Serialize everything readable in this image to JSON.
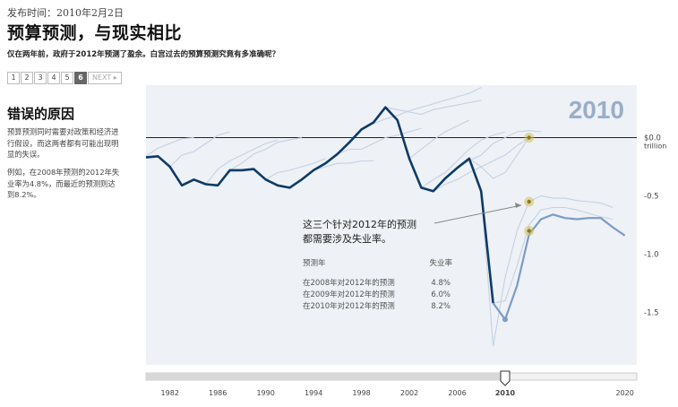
{
  "publish_date": "发布时间：2010年2月2日",
  "headline": "预算预测，与现实相比",
  "subheadline": "仅在两年前，政府于2012年预测了盈余。白宫过去的预算预测究竟有多准确呢？",
  "pager": {
    "pages": [
      "1",
      "2",
      "3",
      "4",
      "5",
      "6"
    ],
    "active_index": 5,
    "next_label": "NEXT ▸"
  },
  "sidebar": {
    "title": "错误的原因",
    "paragraph1": "预算预测同时需要对政策和经济进行假设，而这两者都有可能出现明显的失误。",
    "paragraph2": "例如，在2008年预测的2012年失业率为4.8%，而最近的预测则达到8.2%。"
  },
  "chart_data": {
    "type": "line",
    "year_label": "2010",
    "x_ticks": [
      "1982",
      "1986",
      "1990",
      "1994",
      "1998",
      "2002",
      "2006",
      "2010",
      "2020"
    ],
    "y_ticks": [
      {
        "value": 0.0,
        "label": "$0.0"
      },
      {
        "value": -0.5,
        "label": "-0.5"
      },
      {
        "value": -1.0,
        "label": "-1.0"
      },
      {
        "value": -1.5,
        "label": "-1.5"
      }
    ],
    "y_unit": "trillion",
    "xlim": [
      1980,
      2021
    ],
    "ylim": [
      -1.95,
      0.45
    ],
    "actual": {
      "x": [
        1980,
        1981,
        1982,
        1983,
        1984,
        1985,
        1986,
        1987,
        1988,
        1989,
        1990,
        1991,
        1992,
        1993,
        1994,
        1995,
        1996,
        1997,
        1998,
        1999,
        2000,
        2001,
        2002,
        2003,
        2004,
        2005,
        2006,
        2007,
        2008,
        2009
      ],
      "y": [
        -0.17,
        -0.16,
        -0.25,
        -0.41,
        -0.36,
        -0.4,
        -0.41,
        -0.28,
        -0.28,
        -0.27,
        -0.36,
        -0.41,
        -0.43,
        -0.36,
        -0.28,
        -0.22,
        -0.14,
        -0.04,
        0.07,
        0.13,
        0.26,
        0.15,
        -0.18,
        -0.43,
        -0.46,
        -0.35,
        -0.26,
        -0.18,
        -0.46,
        -1.42
      ]
    },
    "projection_2010": {
      "x": [
        2009,
        2010,
        2011,
        2012,
        2013,
        2014,
        2015,
        2016,
        2017,
        2018,
        2019,
        2020
      ],
      "y": [
        -1.42,
        -1.56,
        -1.27,
        -0.83,
        -0.7,
        -0.66,
        -0.69,
        -0.7,
        -0.69,
        -0.69,
        -0.77,
        -0.84
      ]
    },
    "past_projections": [
      {
        "x": [
          1980,
          1981,
          1982,
          1983,
          1984
        ],
        "y": [
          -0.16,
          -0.09,
          -0.05,
          -0.01,
          0.0
        ]
      },
      {
        "x": [
          1982,
          1983,
          1984,
          1985,
          1986,
          1987
        ],
        "y": [
          -0.25,
          -0.15,
          -0.12,
          -0.05,
          0.02,
          0.05
        ]
      },
      {
        "x": [
          1985,
          1986,
          1987,
          1988,
          1989,
          1990,
          1991
        ],
        "y": [
          -0.4,
          -0.27,
          -0.2,
          -0.15,
          -0.1,
          -0.05,
          -0.02
        ]
      },
      {
        "x": [
          1987,
          1988,
          1989,
          1990,
          1991,
          1992,
          1993
        ],
        "y": [
          -0.28,
          -0.22,
          -0.14,
          -0.1,
          -0.04,
          -0.02,
          0.0
        ]
      },
      {
        "x": [
          1990,
          1991,
          1992,
          1993,
          1994,
          1995
        ],
        "y": [
          -0.36,
          -0.3,
          -0.28,
          -0.25,
          -0.22,
          -0.18
        ]
      },
      {
        "x": [
          1993,
          1994,
          1995,
          1996,
          1997,
          1998,
          1999
        ],
        "y": [
          -0.36,
          -0.28,
          -0.25,
          -0.22,
          -0.22,
          -0.2,
          -0.2
        ]
      },
      {
        "x": [
          1996,
          1997,
          1998,
          1999,
          2000,
          2001,
          2002,
          2003
        ],
        "y": [
          -0.14,
          -0.1,
          -0.1,
          -0.05,
          0.0,
          0.02,
          0.05,
          0.08
        ]
      },
      {
        "x": [
          1998,
          1999,
          2000,
          2001,
          2002,
          2003,
          2004,
          2005,
          2006,
          2007,
          2008
        ],
        "y": [
          0.07,
          0.12,
          0.16,
          0.19,
          0.23,
          0.26,
          0.29,
          0.32,
          0.35,
          0.38,
          0.43
        ]
      },
      {
        "x": [
          2000,
          2001,
          2002,
          2003,
          2004,
          2005,
          2006,
          2007,
          2008
        ],
        "y": [
          0.26,
          0.24,
          0.22,
          0.2,
          0.24,
          0.26,
          0.28,
          0.3,
          0.32
        ]
      },
      {
        "x": [
          2002,
          2003,
          2004,
          2005,
          2006,
          2007
        ],
        "y": [
          -0.18,
          -0.1,
          -0.02,
          0.05,
          0.1,
          0.15
        ]
      },
      {
        "x": [
          2003,
          2004,
          2005,
          2006,
          2007,
          2008,
          2009,
          2010
        ],
        "y": [
          -0.43,
          -0.36,
          -0.3,
          -0.2,
          -0.1,
          -0.02,
          0.02,
          0.05
        ]
      },
      {
        "x": [
          2004,
          2005,
          2006,
          2007,
          2008,
          2009,
          2010,
          2011,
          2012
        ],
        "y": [
          -0.46,
          -0.4,
          -0.36,
          -0.3,
          -0.25,
          -0.2,
          -0.15,
          -0.07,
          0.0
        ]
      },
      {
        "x": [
          2006,
          2007,
          2008,
          2009,
          2010,
          2011,
          2012,
          2013
        ],
        "y": [
          -0.26,
          -0.2,
          -0.15,
          -0.05,
          0.0,
          0.05,
          0.06,
          0.05
        ]
      },
      {
        "x": [
          2007,
          2008,
          2009,
          2010,
          2011,
          2012
        ],
        "y": [
          -0.18,
          -0.25,
          -0.35,
          -0.3,
          -0.15,
          0.0
        ]
      },
      {
        "x": [
          2008,
          2009,
          2010,
          2011,
          2012,
          2013,
          2014,
          2015,
          2016,
          2017,
          2018,
          2019
        ],
        "y": [
          -0.46,
          -1.79,
          -1.2,
          -0.8,
          -0.55,
          -0.5,
          -0.52,
          -0.52,
          -0.54,
          -0.55,
          -0.56,
          -0.6
        ]
      },
      {
        "x": [
          2009,
          2010,
          2011,
          2012,
          2013,
          2014,
          2015,
          2016,
          2017,
          2018,
          2019
        ],
        "y": [
          -1.42,
          -1.4,
          -1.1,
          -0.75,
          -0.62,
          -0.6,
          -0.6,
          -0.62,
          -0.65,
          -0.68,
          -0.7
        ]
      }
    ],
    "highlight_points": [
      {
        "x": 2012,
        "y": 0.0
      },
      {
        "x": 2012,
        "y": -0.55
      },
      {
        "x": 2012,
        "y": -0.8
      }
    ],
    "annotation": {
      "callout_line1": "这三个针对2012年的预测",
      "callout_line2": "都需要涉及失业率。",
      "table_header": [
        "预测年",
        "失业率"
      ],
      "table_rows": [
        [
          "在2008年对2012年的预测",
          "4.8%"
        ],
        [
          "在2009年对2012年的预测",
          "6.0%"
        ],
        [
          "在2010年对2012年的预测",
          "8.2%"
        ]
      ]
    },
    "timeline": {
      "min": 1980,
      "max": 2021,
      "selected": 2010
    },
    "colors": {
      "actual": "#0d3b66",
      "projection_2010": "#7b9cc4",
      "past_projection": "#c4d1e4",
      "highlight": "#d6c15a",
      "background": "#eef1f5",
      "year_label": "#9aaec9"
    }
  }
}
